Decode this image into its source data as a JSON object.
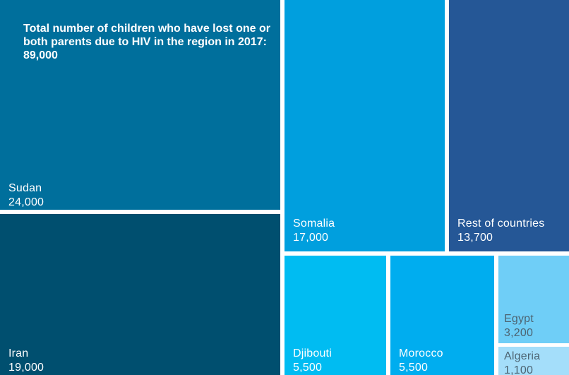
{
  "chart_data": {
    "type": "treemap",
    "title": "Total number of children who have lost one or both parents due to HIV in the region in 2017: 89,000",
    "categories": [
      "Sudan",
      "Iran",
      "Somalia",
      "Rest of countries",
      "Djibouti",
      "Morocco",
      "Egypt",
      "Algeria"
    ],
    "values": [
      24000,
      19000,
      17000,
      13700,
      5500,
      5500,
      3200,
      1100
    ],
    "value_labels": [
      "24,000",
      "19,000",
      "17,000",
      "13,700",
      "5,500",
      "5,500",
      "3,200",
      "1,100"
    ],
    "colors": [
      "#006f9c",
      "#004f6f",
      "#009fde",
      "#255796",
      "#00bcf2",
      "#00adef",
      "#6fcef7",
      "#a4defa"
    ]
  }
}
